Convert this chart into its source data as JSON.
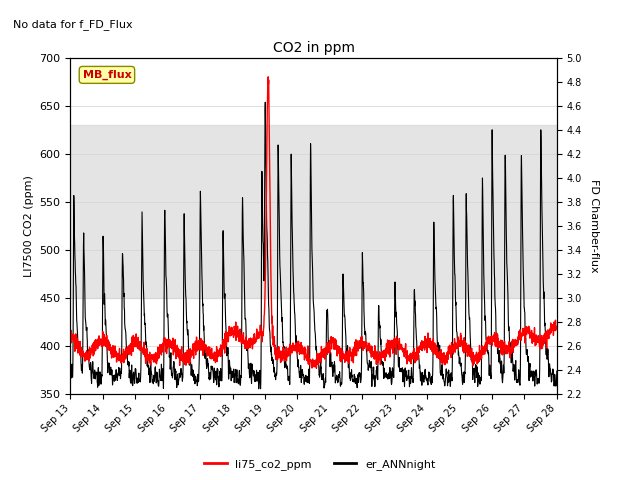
{
  "title": "CO2 in ppm",
  "top_label": "No data for f_FD_Flux",
  "ylabel_left": "LI7500 CO2 (ppm)",
  "ylabel_right": "FD Chamber-flux",
  "ylim_left": [
    350,
    700
  ],
  "ylim_right": [
    2.2,
    5.0
  ],
  "yticks_left": [
    350,
    400,
    450,
    500,
    550,
    600,
    650,
    700
  ],
  "yticks_right": [
    2.2,
    2.4,
    2.6,
    2.8,
    3.0,
    3.2,
    3.4,
    3.6,
    3.8,
    4.0,
    4.2,
    4.4,
    4.6,
    4.8,
    5.0
  ],
  "xtick_labels": [
    "Sep 13",
    "Sep 14",
    "Sep 15",
    "Sep 16",
    "Sep 17",
    "Sep 18",
    "Sep 19",
    "Sep 20",
    "Sep 21",
    "Sep 22",
    "Sep 23",
    "Sep 24",
    "Sep 25",
    "Sep 26",
    "Sep 27",
    "Sep 28"
  ],
  "shaded_band": [
    450,
    630
  ],
  "shaded_color": "#d3d3d3",
  "legend_entries": [
    "li75_co2_ppm",
    "er_ANNnight"
  ],
  "legend_colors": [
    "#ff0000",
    "#000000"
  ],
  "mb_flux_box_color": "#ffffaa",
  "mb_flux_text_color": "#cc0000",
  "line1_color": "#ff0000",
  "line2_color": "#000000",
  "background_color": "#ffffff",
  "figsize": [
    6.4,
    4.8
  ],
  "dpi": 100
}
